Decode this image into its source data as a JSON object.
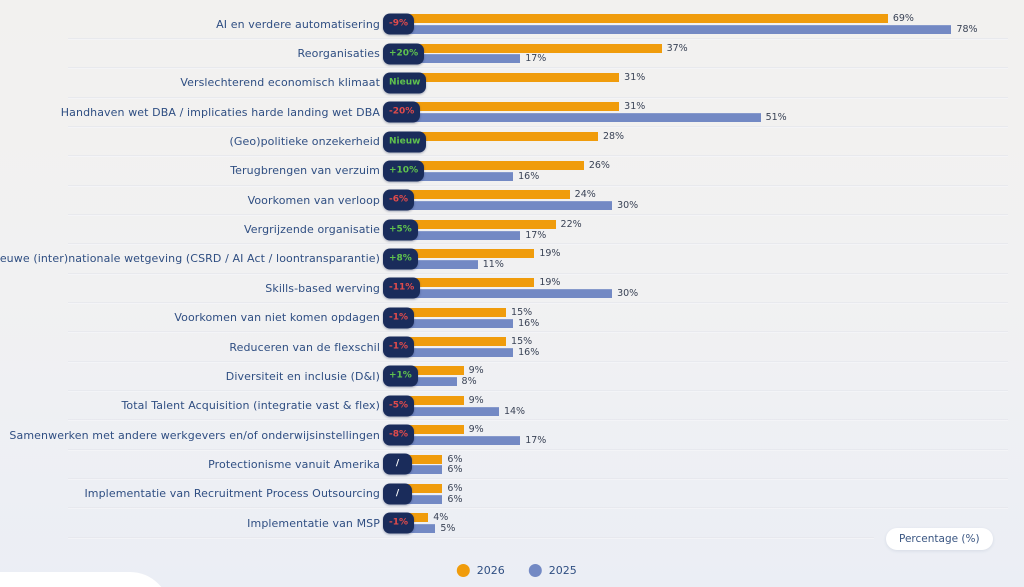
{
  "chart_data": {
    "type": "bar",
    "orientation": "horizontal",
    "unit": "%",
    "xlabel": "Percentage (%)",
    "axis_pill_label": "Percentage (%)",
    "xlim": [
      0,
      100
    ],
    "grid": "row-separators",
    "legend_position": "bottom-center",
    "legend": [
      {
        "name": "2026",
        "color": "#f09c0c"
      },
      {
        "name": "2025",
        "color": "#7389c4"
      }
    ],
    "colors": {
      "bar_2026": "#f09c0c",
      "bar_2025": "#7389c4",
      "badge_background": "#1a2c5b",
      "badge_positive_text": "#5fc24d",
      "badge_negative_text": "#e14b4b",
      "badge_neutral_text": "#ffffff",
      "category_label_text": "#2f4e82",
      "value_label_text": "#3a4356",
      "background": "#f1f1f2"
    },
    "rows": [
      {
        "label": "AI en verdere automatisering",
        "change": "-9%",
        "v2026": 69,
        "v2025": 78,
        "label2026": "69%",
        "label2025": "78%"
      },
      {
        "label": "Reorganisaties",
        "change": "+20%",
        "v2026": 37,
        "v2025": 17,
        "label2026": "37%",
        "label2025": "17%"
      },
      {
        "label": "Verslechterend economisch klimaat",
        "change": "Nieuw",
        "v2026": 31,
        "v2025": null,
        "label2026": "31%",
        "label2025": null
      },
      {
        "label": "Handhaven wet DBA / implicaties harde landing wet DBA",
        "change": "-20%",
        "v2026": 31,
        "v2025": 51,
        "label2026": "31%",
        "label2025": "51%"
      },
      {
        "label": "(Geo)politieke onzekerheid",
        "change": "Nieuw",
        "v2026": 28,
        "v2025": null,
        "label2026": "28%",
        "label2025": null
      },
      {
        "label": "Terugbrengen van verzuim",
        "change": "+10%",
        "v2026": 26,
        "v2025": 16,
        "label2026": "26%",
        "label2025": "16%"
      },
      {
        "label": "Voorkomen van verloop",
        "change": "-6%",
        "v2026": 24,
        "v2025": 30,
        "label2026": "24%",
        "label2025": "30%"
      },
      {
        "label": "Vergrijzende organisatie",
        "change": "+5%",
        "v2026": 22,
        "v2025": 17,
        "label2026": "22%",
        "label2025": "17%"
      },
      {
        "label": "Nieuwe (inter)nationale wetgeving (CSRD / AI Act / loontransparantie)",
        "change": "+8%",
        "v2026": 19,
        "v2025": 11,
        "label2026": "19%",
        "label2025": "11%"
      },
      {
        "label": "Skills-based werving",
        "change": "-11%",
        "v2026": 19,
        "v2025": 30,
        "label2026": "19%",
        "label2025": "30%"
      },
      {
        "label": "Voorkomen van niet komen opdagen",
        "change": "-1%",
        "v2026": 15,
        "v2025": 16,
        "label2026": "15%",
        "label2025": "16%"
      },
      {
        "label": "Reduceren van de flexschil",
        "change": "-1%",
        "v2026": 15,
        "v2025": 16,
        "label2026": "15%",
        "label2025": "16%"
      },
      {
        "label": "Diversiteit en inclusie (D&I)",
        "change": "+1%",
        "v2026": 9,
        "v2025": 8,
        "label2026": "9%",
        "label2025": "8%"
      },
      {
        "label": "Total Talent Acquisition (integratie vast & flex)",
        "change": "-5%",
        "v2026": 9,
        "v2025": 14,
        "label2026": "9%",
        "label2025": "14%"
      },
      {
        "label": "Samenwerken met andere werkgevers en/of onderwijsinstellingen",
        "change": "-8%",
        "v2026": 9,
        "v2025": 17,
        "label2026": "9%",
        "label2025": "17%"
      },
      {
        "label": "Protectionisme vanuit Amerika",
        "change": "/",
        "v2026": 6,
        "v2025": 6,
        "label2026": "6%",
        "label2025": "6%"
      },
      {
        "label": "Implementatie van Recruitment Process Outsourcing",
        "change": "/",
        "v2026": 6,
        "v2025": 6,
        "label2026": "6%",
        "label2025": "6%"
      },
      {
        "label": "Implementatie van MSP",
        "change": "-1%",
        "v2026": 4,
        "v2025": 5,
        "label2026": "4%",
        "label2025": "5%"
      }
    ]
  }
}
